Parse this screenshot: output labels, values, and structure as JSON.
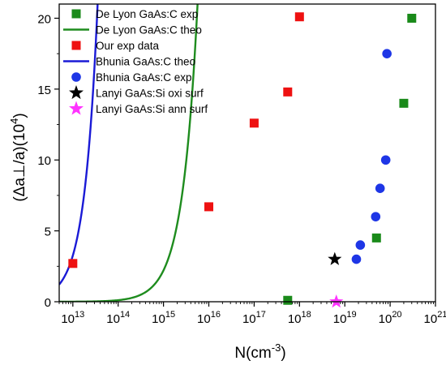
{
  "chart_data": {
    "type": "scatter",
    "xscale": "log",
    "xlim": [
      5000000000000.0,
      1e+21
    ],
    "ylim": [
      0,
      21
    ],
    "xlabel_base": "N(cm",
    "xlabel_sup": "-3",
    "xlabel_end": ")",
    "ylabel_main": "(Δa⊥/a)(10",
    "ylabel_sup": "4",
    "ylabel_end": ")",
    "x_ticks": [
      {
        "base": "10",
        "exp": "13",
        "value": 10000000000000.0
      },
      {
        "base": "10",
        "exp": "14",
        "value": 100000000000000.0
      },
      {
        "base": "10",
        "exp": "15",
        "value": 1000000000000000.0
      },
      {
        "base": "10",
        "exp": "16",
        "value": 1e+16
      },
      {
        "base": "10",
        "exp": "17",
        "value": 1e+17
      },
      {
        "base": "10",
        "exp": "18",
        "value": 1e+18
      },
      {
        "base": "10",
        "exp": "19",
        "value": 1e+19
      },
      {
        "base": "10",
        "exp": "20",
        "value": 1e+20
      },
      {
        "base": "10",
        "exp": "21",
        "value": 1e+21
      }
    ],
    "y_ticks": [
      {
        "label": "0",
        "value": 0
      },
      {
        "label": "5",
        "value": 5
      },
      {
        "label": "10",
        "value": 10
      },
      {
        "label": "15",
        "value": 15
      },
      {
        "label": "20",
        "value": 20
      }
    ],
    "legend_position": "top-left",
    "series": [
      {
        "name": "De Lyon GaAs:C exp",
        "kind": "scatter",
        "marker": "square",
        "color": "#1a8a1a",
        "points": [
          [
            5.5e+17,
            0.1
          ],
          [
            5e+19,
            4.5
          ],
          [
            2e+20,
            14.0
          ],
          [
            3e+20,
            20.0
          ]
        ]
      },
      {
        "name": "De Lyon GaAs:C theo",
        "kind": "line",
        "color": "#1e8c1e",
        "model": {
          "k": 7e-20,
          "p": 1.3,
          "offset": 0.0
        }
      },
      {
        "name": "Our exp data",
        "kind": "scatter",
        "marker": "square",
        "color": "#ee1111",
        "points": [
          [
            10000000000000.0,
            2.7
          ],
          [
            1e+16,
            6.7
          ],
          [
            1e+17,
            12.6
          ],
          [
            5.5e+17,
            14.8
          ],
          [
            1e+18,
            20.1
          ]
        ]
      },
      {
        "name": "Bhunia GaAs:C theo",
        "kind": "line",
        "color": "#1a1ad6",
        "model": {
          "k": 1e-19,
          "p": 1.5,
          "offset": 0.1
        }
      },
      {
        "name": "Bhunia GaAs:C exp",
        "kind": "scatter",
        "marker": "circle",
        "color": "#1e36e6",
        "points": [
          [
            1.8e+19,
            3.0
          ],
          [
            2.2e+19,
            4.0
          ],
          [
            4.8e+19,
            6.0
          ],
          [
            6e+19,
            8.0
          ],
          [
            8e+19,
            10.0
          ],
          [
            8.5e+19,
            17.5
          ]
        ]
      },
      {
        "name": "Lanyi GaAs:Si oxi surf",
        "kind": "scatter",
        "marker": "star",
        "color": "#000000",
        "points": [
          [
            6e+18,
            3.0
          ]
        ]
      },
      {
        "name": "Lanyi GaAs:Si ann surf",
        "kind": "scatter",
        "marker": "star",
        "color": "#ff33ff",
        "points": [
          [
            6.5e+18,
            0.0
          ]
        ]
      }
    ]
  }
}
